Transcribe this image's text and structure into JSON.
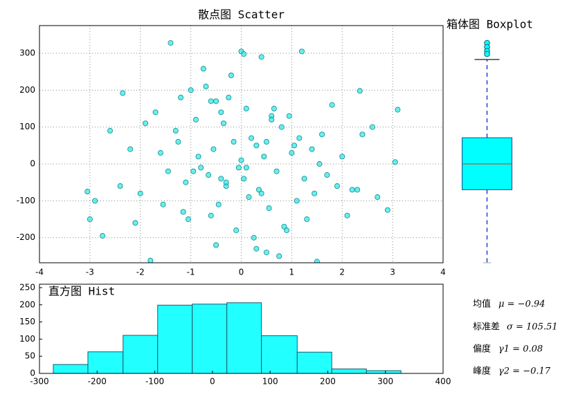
{
  "chart_data": [
    {
      "type": "scatter",
      "title": "散点图 Scatter",
      "x": [
        -1.4,
        0.0,
        0.05,
        1.2,
        -3.05,
        -2.75,
        3.1,
        3.05,
        -2.35,
        2.35,
        1.5,
        -1.8,
        0.4,
        -0.75,
        -1.2,
        -0.5,
        0.9,
        1.8,
        2.1,
        -2.1,
        -2.6,
        2.7,
        2.9,
        -0.2,
        0.3,
        0.6,
        -0.9,
        1.1,
        -1.6,
        1.4,
        -0.3,
        0.2,
        0.7,
        -0.6,
        -1.0,
        1.6,
        -2.0,
        2.0,
        0.1,
        -0.1,
        0.5,
        -0.4,
        0.8,
        -0.8,
        1.3,
        -1.3,
        0.0,
        0.35,
        -0.35,
        1.0,
        -1.1,
        2.4,
        -2.4,
        0.55,
        -0.55,
        1.7,
        -1.7,
        0.25,
        -0.25,
        0.15,
        -0.15,
        0.45,
        -0.45,
        0.65,
        -0.65,
        1.9,
        -1.9,
        2.2,
        -2.2,
        0.95,
        -0.95,
        1.15,
        -1.15,
        0.75,
        -0.7,
        0.05,
        -0.05,
        2.6,
        -2.9,
        1.25,
        -1.25,
        0.85,
        -0.85,
        0.5,
        -0.5,
        1.45,
        -1.45,
        0.3,
        -0.3,
        2.3,
        -3.0,
        0.1,
        1.55,
        -1.55,
        0.6,
        -0.6,
        0.4,
        -0.4,
        1.05,
        -1.05
      ],
      "y": [
        328,
        305,
        298,
        305,
        -75,
        -195,
        147,
        5,
        192,
        198,
        -265,
        -262,
        290,
        258,
        180,
        -220,
        -180,
        160,
        -140,
        -160,
        90,
        -90,
        -125,
        240,
        -230,
        130,
        120,
        -100,
        30,
        40,
        -60,
        70,
        -20,
        -140,
        200,
        80,
        -80,
        20,
        150,
        -180,
        60,
        -40,
        100,
        -10,
        -150,
        90,
        10,
        -70,
        110,
        30,
        -50,
        80,
        -60,
        -120,
        40,
        -30,
        140,
        -200,
        180,
        -90,
        60,
        20,
        -110,
        150,
        -30,
        -60,
        110,
        -70,
        40,
        130,
        -20,
        70,
        -130,
        -250,
        210,
        -40,
        -10,
        100,
        -100,
        -40,
        60,
        -170,
        20,
        -240,
        170,
        -80,
        -20,
        50,
        -50,
        -70,
        -150,
        -10,
        0,
        -110,
        120,
        170,
        -80,
        140,
        50,
        -150
      ],
      "color": "#2ee6e6",
      "xlim": [
        -4,
        4
      ],
      "xticks": [
        -4,
        -3,
        -2,
        -1,
        0,
        1,
        2,
        3,
        4
      ],
      "ylim": [
        -268,
        375
      ],
      "yticks": [
        -200,
        -100,
        0,
        100,
        200,
        300
      ],
      "grid": true
    },
    {
      "type": "box",
      "title": "箱体图 Boxplot",
      "q1": -70,
      "median": 0,
      "q3": 71,
      "whisker_low": -285,
      "whisker_high": 283,
      "outliers": [
        328,
        317,
        306,
        298
      ],
      "color": "#00ffff",
      "ylim": [
        -268,
        375
      ]
    },
    {
      "type": "histogram",
      "title": "直方图 Hist",
      "bins": [
        -276,
        -216,
        -155,
        -95,
        -35,
        25,
        85,
        147,
        207,
        267,
        327
      ],
      "values": [
        26,
        63,
        111,
        199,
        202,
        206,
        110,
        62,
        13,
        8
      ],
      "color": "#22ffff",
      "xlim": [
        -300,
        400
      ],
      "xticks": [
        -300,
        -200,
        -100,
        0,
        100,
        200,
        300,
        400
      ],
      "ylim": [
        0,
        260
      ],
      "yticks": [
        0,
        50,
        100,
        150,
        200,
        250
      ]
    }
  ],
  "stats": [
    {
      "label": "均值",
      "formula": "μ = −0.94"
    },
    {
      "label": "标准差",
      "formula": "σ = 105.51"
    },
    {
      "label": "偏度",
      "formula": "γ1 = 0.08"
    },
    {
      "label": "峰度",
      "formula": "γ2 = −0.17"
    }
  ]
}
